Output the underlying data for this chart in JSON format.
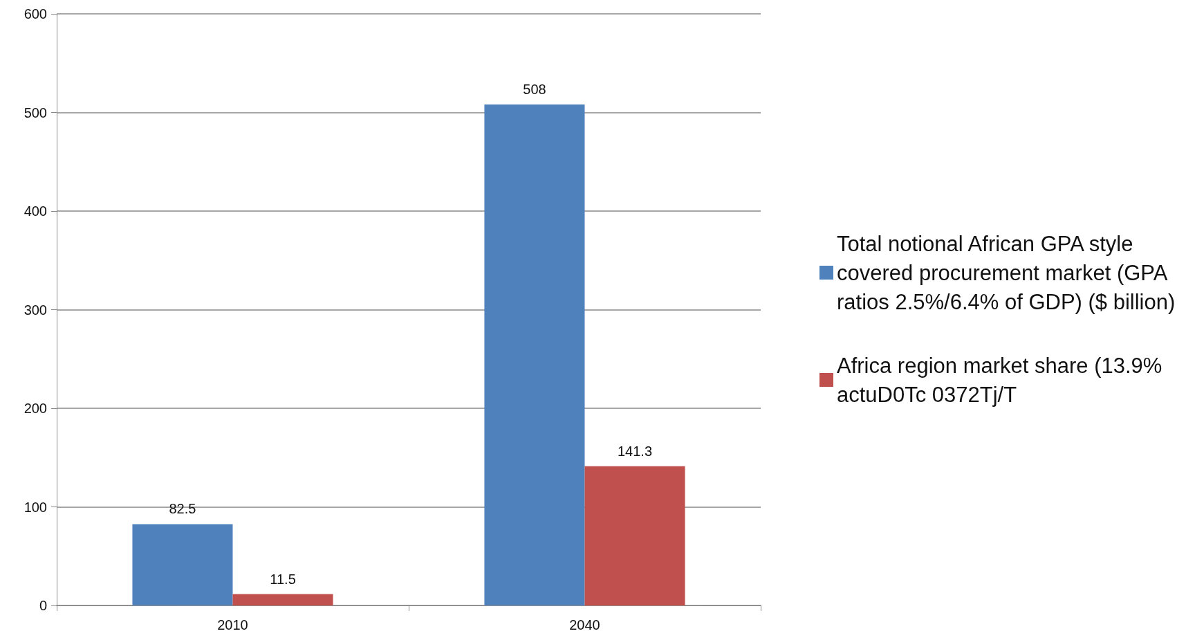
{
  "chart_data": {
    "type": "bar",
    "categories": [
      "2010",
      "2040"
    ],
    "series": [
      {
        "name": "Total notional African GPA style covered procurement market (GPA ratios 2.5%/6.4% of GDP) ($ billion)",
        "color": "#4f81bd",
        "values": [
          82.5,
          508
        ]
      },
      {
        "name": "Africa region market share (13.9% actuD0Tc 0372Tj/T",
        "color": "#c0504d",
        "values": [
          11.5,
          141.3
        ]
      }
    ],
    "ylim": [
      0,
      600
    ],
    "yticks": [
      0,
      100,
      200,
      300,
      400,
      500,
      600
    ],
    "grid": "y",
    "legend": "right",
    "data_labels": true
  }
}
